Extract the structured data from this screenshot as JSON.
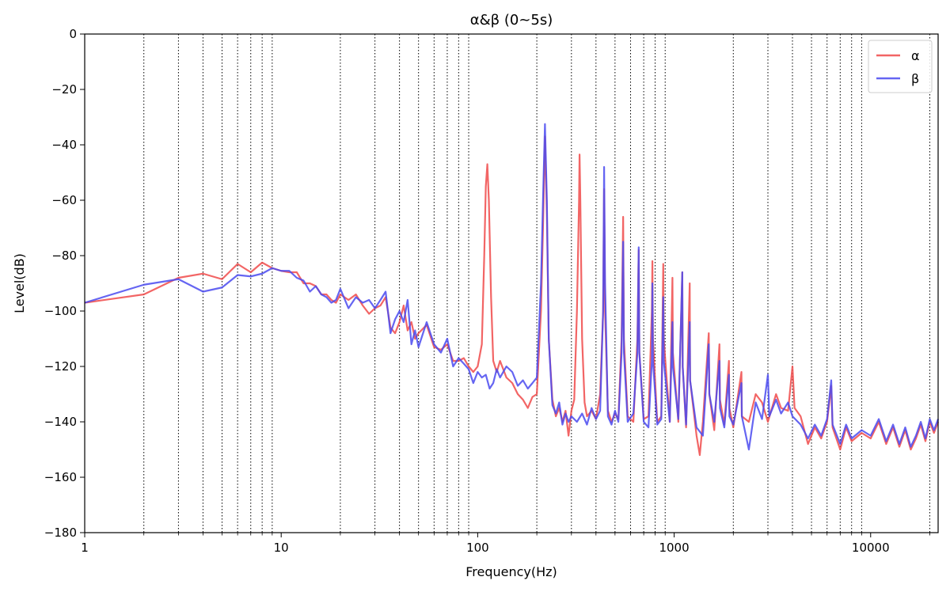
{
  "chart_data": {
    "type": "line",
    "title": "α&β (0~5s)",
    "xlabel": "Frequency(Hz)",
    "ylabel": "Level(dB)",
    "xscale": "log",
    "xlim": [
      1,
      22050
    ],
    "ylim": [
      -180,
      0
    ],
    "grid": "x-minor-dotted",
    "legend_position": "top-right",
    "x_tick_labels": [
      "1",
      "10",
      "100",
      "1000",
      "10000"
    ],
    "x_ticks": [
      1,
      10,
      100,
      1000,
      10000
    ],
    "y_ticks": [
      0,
      -20,
      -40,
      -60,
      -80,
      -100,
      -120,
      -140,
      -160,
      -180
    ],
    "y_tick_labels": [
      "0",
      "−20",
      "−40",
      "−60",
      "−80",
      "−100",
      "−120",
      "−140",
      "−160",
      "−180"
    ],
    "series": [
      {
        "name": "α",
        "color": "#f04a4a",
        "points": [
          [
            1,
            -97
          ],
          [
            2,
            -94
          ],
          [
            3,
            -88
          ],
          [
            4,
            -86.5
          ],
          [
            5,
            -88.5
          ],
          [
            6,
            -83
          ],
          [
            7,
            -86
          ],
          [
            8,
            -82.5
          ],
          [
            9,
            -84.5
          ],
          [
            10,
            -85.5
          ],
          [
            11,
            -86
          ],
          [
            12,
            -86
          ],
          [
            13,
            -90
          ],
          [
            14,
            -90
          ],
          [
            15,
            -91
          ],
          [
            16,
            -94
          ],
          [
            17,
            -94
          ],
          [
            18,
            -96
          ],
          [
            19,
            -97
          ],
          [
            20,
            -94
          ],
          [
            22,
            -96
          ],
          [
            24,
            -94
          ],
          [
            26,
            -98
          ],
          [
            28,
            -101
          ],
          [
            30,
            -99
          ],
          [
            32,
            -98
          ],
          [
            34,
            -95
          ],
          [
            36,
            -106
          ],
          [
            38,
            -108
          ],
          [
            40,
            -104
          ],
          [
            42,
            -98
          ],
          [
            44,
            -107
          ],
          [
            46,
            -104
          ],
          [
            48,
            -110
          ],
          [
            50,
            -108
          ],
          [
            55,
            -105
          ],
          [
            60,
            -113
          ],
          [
            65,
            -114
          ],
          [
            70,
            -112
          ],
          [
            75,
            -118
          ],
          [
            80,
            -118
          ],
          [
            85,
            -117
          ],
          [
            90,
            -120
          ],
          [
            95,
            -122
          ],
          [
            100,
            -120
          ],
          [
            105,
            -112
          ],
          [
            108,
            -80
          ],
          [
            110,
            -55
          ],
          [
            112,
            -47
          ],
          [
            114,
            -60
          ],
          [
            117,
            -95
          ],
          [
            120,
            -118
          ],
          [
            125,
            -122
          ],
          [
            130,
            -118
          ],
          [
            140,
            -124
          ],
          [
            150,
            -126
          ],
          [
            160,
            -130
          ],
          [
            170,
            -132
          ],
          [
            180,
            -135
          ],
          [
            190,
            -131
          ],
          [
            200,
            -130
          ],
          [
            210,
            -100
          ],
          [
            215,
            -70
          ],
          [
            220,
            -37
          ],
          [
            225,
            -65
          ],
          [
            230,
            -110
          ],
          [
            240,
            -132
          ],
          [
            250,
            -138
          ],
          [
            260,
            -135
          ],
          [
            270,
            -140
          ],
          [
            280,
            -136
          ],
          [
            290,
            -145
          ],
          [
            300,
            -136
          ],
          [
            310,
            -132
          ],
          [
            320,
            -100
          ],
          [
            328,
            -60
          ],
          [
            330,
            -43.5
          ],
          [
            333,
            -60
          ],
          [
            340,
            -110
          ],
          [
            350,
            -133
          ],
          [
            360,
            -138
          ],
          [
            380,
            -136
          ],
          [
            400,
            -139
          ],
          [
            420,
            -130
          ],
          [
            435,
            -100
          ],
          [
            440,
            -56
          ],
          [
            445,
            -100
          ],
          [
            460,
            -136
          ],
          [
            480,
            -140
          ],
          [
            500,
            -137
          ],
          [
            520,
            -139
          ],
          [
            540,
            -110
          ],
          [
            550,
            -66
          ],
          [
            555,
            -110
          ],
          [
            580,
            -138
          ],
          [
            620,
            -140
          ],
          [
            650,
            -110
          ],
          [
            660,
            -78
          ],
          [
            665,
            -115
          ],
          [
            700,
            -139
          ],
          [
            740,
            -138
          ],
          [
            770,
            -100
          ],
          [
            775,
            -82
          ],
          [
            780,
            -110
          ],
          [
            820,
            -140
          ],
          [
            860,
            -138
          ],
          [
            880,
            -83
          ],
          [
            885,
            -110
          ],
          [
            950,
            -140
          ],
          [
            980,
            -88
          ],
          [
            985,
            -115
          ],
          [
            1050,
            -140
          ],
          [
            1100,
            -86
          ],
          [
            1105,
            -120
          ],
          [
            1150,
            -142
          ],
          [
            1200,
            -90
          ],
          [
            1205,
            -125
          ],
          [
            1300,
            -145
          ],
          [
            1350,
            -152
          ],
          [
            1400,
            -140
          ],
          [
            1500,
            -108
          ],
          [
            1510,
            -130
          ],
          [
            1600,
            -143
          ],
          [
            1700,
            -112
          ],
          [
            1710,
            -132
          ],
          [
            1800,
            -141
          ],
          [
            1900,
            -118
          ],
          [
            1910,
            -135
          ],
          [
            2000,
            -142
          ],
          [
            2200,
            -122
          ],
          [
            2210,
            -138
          ],
          [
            2400,
            -140
          ],
          [
            2600,
            -130
          ],
          [
            2800,
            -133
          ],
          [
            3000,
            -140
          ],
          [
            3300,
            -130
          ],
          [
            3500,
            -135
          ],
          [
            3800,
            -136
          ],
          [
            4000,
            -120
          ],
          [
            4100,
            -135
          ],
          [
            4400,
            -138
          ],
          [
            4800,
            -148
          ],
          [
            5200,
            -142
          ],
          [
            5600,
            -146
          ],
          [
            6000,
            -140
          ],
          [
            6300,
            -127
          ],
          [
            6400,
            -142
          ],
          [
            7000,
            -150
          ],
          [
            7500,
            -142
          ],
          [
            8000,
            -147
          ],
          [
            9000,
            -144
          ],
          [
            10000,
            -146
          ],
          [
            11000,
            -140
          ],
          [
            12000,
            -148
          ],
          [
            13000,
            -142
          ],
          [
            14000,
            -149
          ],
          [
            15000,
            -143
          ],
          [
            16000,
            -150
          ],
          [
            17000,
            -146
          ],
          [
            18000,
            -141
          ],
          [
            19000,
            -147
          ],
          [
            20000,
            -140
          ],
          [
            21000,
            -144
          ],
          [
            22050,
            -140
          ]
        ]
      },
      {
        "name": "β",
        "color": "#4a4af0",
        "points": [
          [
            1,
            -97
          ],
          [
            2,
            -90.5
          ],
          [
            3,
            -88.5
          ],
          [
            4,
            -93
          ],
          [
            5,
            -91.5
          ],
          [
            6,
            -87
          ],
          [
            7,
            -87.5
          ],
          [
            8,
            -86.5
          ],
          [
            9,
            -84.5
          ],
          [
            10,
            -85.5
          ],
          [
            11,
            -85.5
          ],
          [
            12,
            -88
          ],
          [
            13,
            -89
          ],
          [
            14,
            -93
          ],
          [
            15,
            -91
          ],
          [
            16,
            -94
          ],
          [
            17,
            -95
          ],
          [
            18,
            -97
          ],
          [
            19,
            -96
          ],
          [
            20,
            -92
          ],
          [
            22,
            -99
          ],
          [
            24,
            -95
          ],
          [
            26,
            -97
          ],
          [
            28,
            -96
          ],
          [
            30,
            -99
          ],
          [
            32,
            -96
          ],
          [
            34,
            -93
          ],
          [
            36,
            -108
          ],
          [
            38,
            -103
          ],
          [
            40,
            -100
          ],
          [
            42,
            -104
          ],
          [
            44,
            -96
          ],
          [
            46,
            -112
          ],
          [
            48,
            -107
          ],
          [
            50,
            -113
          ],
          [
            55,
            -104
          ],
          [
            60,
            -112
          ],
          [
            65,
            -115
          ],
          [
            70,
            -110
          ],
          [
            75,
            -120
          ],
          [
            80,
            -117
          ],
          [
            85,
            -119
          ],
          [
            90,
            -121
          ],
          [
            95,
            -126
          ],
          [
            100,
            -122
          ],
          [
            105,
            -124
          ],
          [
            110,
            -123
          ],
          [
            115,
            -128
          ],
          [
            120,
            -126
          ],
          [
            125,
            -121
          ],
          [
            130,
            -124
          ],
          [
            140,
            -120
          ],
          [
            150,
            -122
          ],
          [
            160,
            -127
          ],
          [
            170,
            -125
          ],
          [
            180,
            -128
          ],
          [
            190,
            -126
          ],
          [
            200,
            -124
          ],
          [
            210,
            -90
          ],
          [
            215,
            -60
          ],
          [
            220,
            -32.5
          ],
          [
            225,
            -60
          ],
          [
            230,
            -110
          ],
          [
            240,
            -134
          ],
          [
            250,
            -137
          ],
          [
            260,
            -133
          ],
          [
            270,
            -141
          ],
          [
            280,
            -137
          ],
          [
            290,
            -140
          ],
          [
            300,
            -138
          ],
          [
            320,
            -140
          ],
          [
            340,
            -137
          ],
          [
            360,
            -141
          ],
          [
            380,
            -135
          ],
          [
            400,
            -139
          ],
          [
            420,
            -136
          ],
          [
            435,
            -100
          ],
          [
            440,
            -48
          ],
          [
            445,
            -90
          ],
          [
            460,
            -138
          ],
          [
            480,
            -141
          ],
          [
            500,
            -136
          ],
          [
            520,
            -140
          ],
          [
            540,
            -115
          ],
          [
            550,
            -75
          ],
          [
            555,
            -115
          ],
          [
            580,
            -140
          ],
          [
            620,
            -137
          ],
          [
            650,
            -115
          ],
          [
            660,
            -77
          ],
          [
            665,
            -115
          ],
          [
            700,
            -140
          ],
          [
            740,
            -142
          ],
          [
            770,
            -118
          ],
          [
            775,
            -90
          ],
          [
            780,
            -118
          ],
          [
            820,
            -141
          ],
          [
            860,
            -139
          ],
          [
            880,
            -95
          ],
          [
            885,
            -118
          ],
          [
            950,
            -140
          ],
          [
            980,
            -104
          ],
          [
            985,
            -120
          ],
          [
            1050,
            -139
          ],
          [
            1100,
            -86
          ],
          [
            1105,
            -120
          ],
          [
            1150,
            -141
          ],
          [
            1200,
            -104
          ],
          [
            1205,
            -125
          ],
          [
            1300,
            -142
          ],
          [
            1400,
            -145
          ],
          [
            1500,
            -112
          ],
          [
            1510,
            -130
          ],
          [
            1600,
            -140
          ],
          [
            1700,
            -118
          ],
          [
            1710,
            -135
          ],
          [
            1800,
            -142
          ],
          [
            1900,
            -123
          ],
          [
            1910,
            -138
          ],
          [
            2000,
            -141
          ],
          [
            2200,
            -126
          ],
          [
            2210,
            -138
          ],
          [
            2400,
            -150
          ],
          [
            2600,
            -133
          ],
          [
            2800,
            -139
          ],
          [
            3000,
            -123
          ],
          [
            3050,
            -138
          ],
          [
            3300,
            -132
          ],
          [
            3500,
            -137
          ],
          [
            3800,
            -133
          ],
          [
            4000,
            -138
          ],
          [
            4400,
            -141
          ],
          [
            4800,
            -146
          ],
          [
            5200,
            -141
          ],
          [
            5600,
            -145
          ],
          [
            6000,
            -139
          ],
          [
            6300,
            -125
          ],
          [
            6400,
            -141
          ],
          [
            7000,
            -148
          ],
          [
            7500,
            -141
          ],
          [
            8000,
            -146
          ],
          [
            9000,
            -143
          ],
          [
            10000,
            -145
          ],
          [
            11000,
            -139
          ],
          [
            12000,
            -147
          ],
          [
            13000,
            -141
          ],
          [
            14000,
            -148
          ],
          [
            15000,
            -142
          ],
          [
            16000,
            -149
          ],
          [
            17000,
            -145
          ],
          [
            18000,
            -140
          ],
          [
            19000,
            -146
          ],
          [
            20000,
            -139
          ],
          [
            21000,
            -143
          ],
          [
            22050,
            -139
          ]
        ]
      }
    ]
  }
}
